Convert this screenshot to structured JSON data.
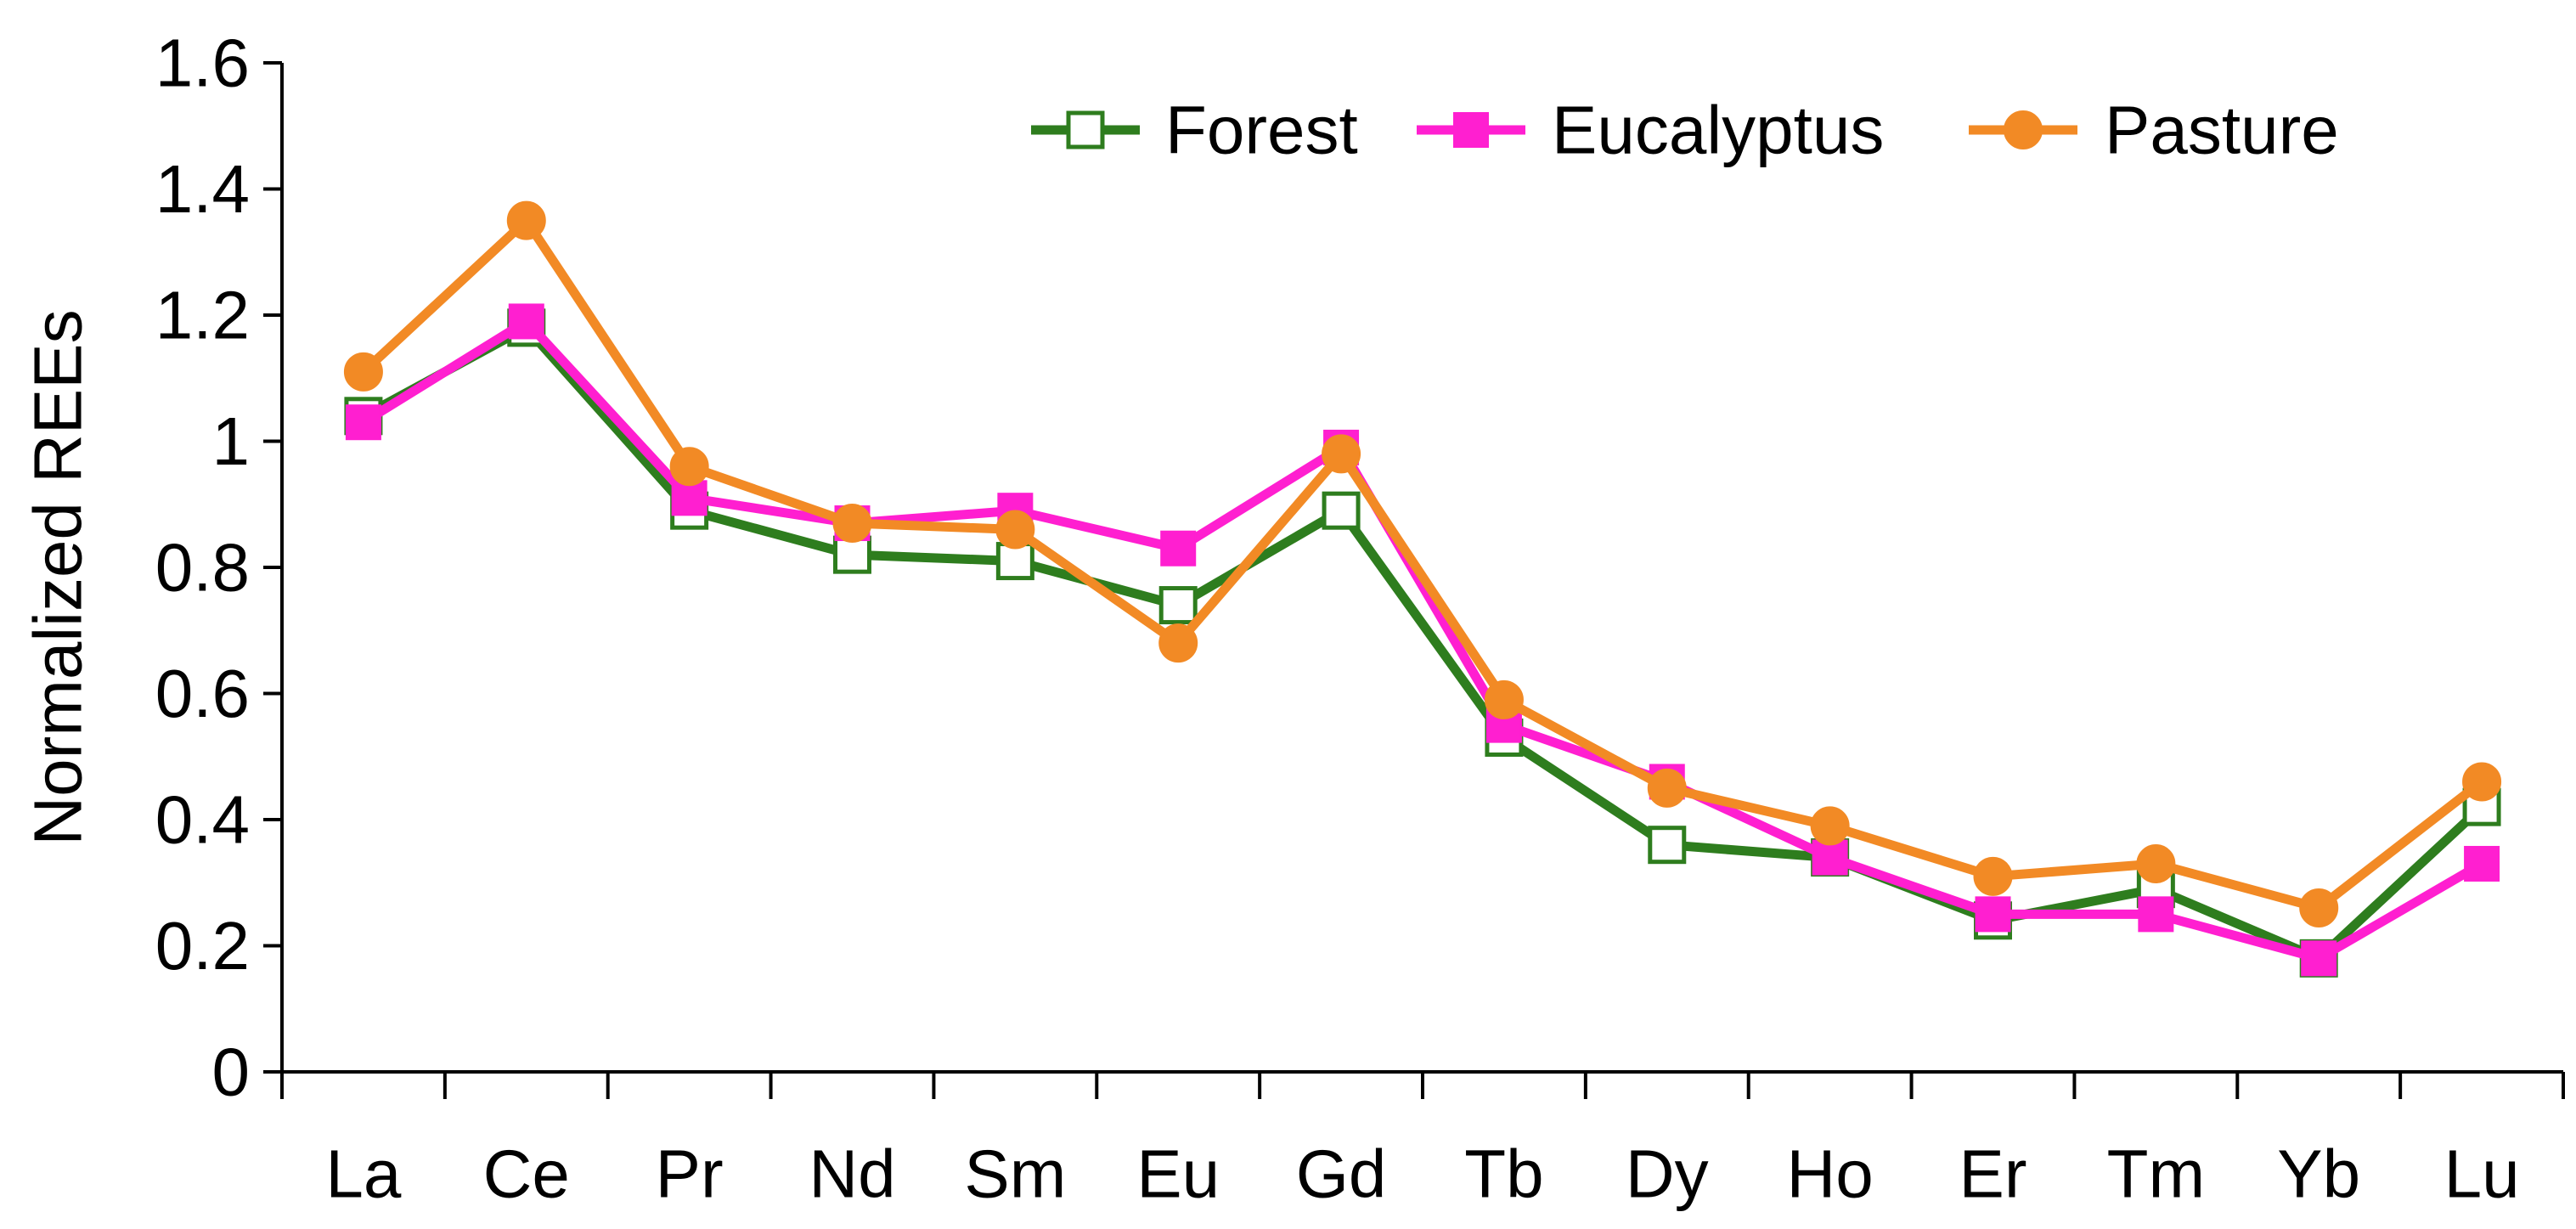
{
  "chart_data": {
    "type": "line",
    "title": "",
    "xlabel": "",
    "ylabel": "Normalized REEs",
    "ylim": [
      0,
      1.6
    ],
    "yticks": [
      "0",
      "0.2",
      "0.4",
      "0.6",
      "0.8",
      "1",
      "1.2",
      "1.4",
      "1.6"
    ],
    "grid": false,
    "legend_position": "top-right",
    "categories": [
      "La",
      "Ce",
      "Pr",
      "Nd",
      "Sm",
      "Eu",
      "Gd",
      "Tb",
      "Dy",
      "Ho",
      "Er",
      "Tm",
      "Yb",
      "Lu"
    ],
    "series": [
      {
        "name": "Forest",
        "color": "#2e7d1e",
        "marker": "square-open",
        "values": [
          1.04,
          1.18,
          0.89,
          0.82,
          0.81,
          0.74,
          0.89,
          0.53,
          0.36,
          0.34,
          0.24,
          0.29,
          0.18,
          0.42
        ]
      },
      {
        "name": "Eucalyptus",
        "color": "#ff1fd0",
        "marker": "square-filled",
        "values": [
          1.03,
          1.19,
          0.91,
          0.87,
          0.89,
          0.83,
          0.99,
          0.55,
          0.46,
          0.34,
          0.25,
          0.25,
          0.18,
          0.33
        ]
      },
      {
        "name": "Pasture",
        "color": "#f28a25",
        "marker": "circle-filled",
        "values": [
          1.11,
          1.35,
          0.96,
          0.87,
          0.86,
          0.68,
          0.98,
          0.59,
          0.45,
          0.39,
          0.31,
          0.33,
          0.26,
          0.46
        ]
      }
    ]
  }
}
